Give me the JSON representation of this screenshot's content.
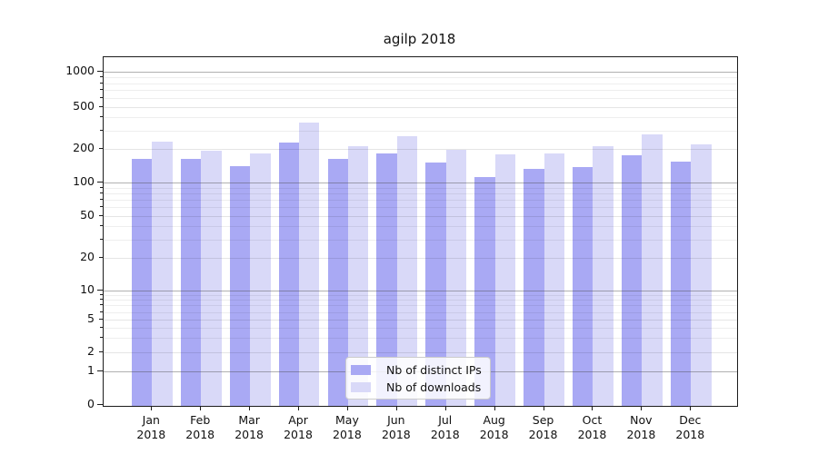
{
  "chart_data": {
    "type": "bar",
    "title": "agilp 2018",
    "categories": [
      "Jan",
      "Feb",
      "Mar",
      "Apr",
      "May",
      "Jun",
      "Jul",
      "Aug",
      "Sep",
      "Oct",
      "Nov",
      "Dec"
    ],
    "category_year": "2018",
    "series": [
      {
        "name": "Nb of distinct IPs",
        "color": "#a9a9f4",
        "values": [
          168,
          166,
          144,
          237,
          166,
          187,
          155,
          115,
          135,
          140,
          181,
          158
        ]
      },
      {
        "name": "Nb of downloads",
        "color": "#d9d9f8",
        "values": [
          239,
          199,
          186,
          365,
          216,
          268,
          201,
          183,
          187,
          219,
          282,
          228
        ]
      }
    ],
    "y_axis": {
      "scale": "symlog",
      "tick_values": [
        0,
        1,
        2,
        5,
        10,
        20,
        50,
        100,
        200,
        500,
        1000
      ],
      "range": [
        0,
        1100
      ]
    },
    "grid": "both",
    "legend_position": "lower center"
  }
}
